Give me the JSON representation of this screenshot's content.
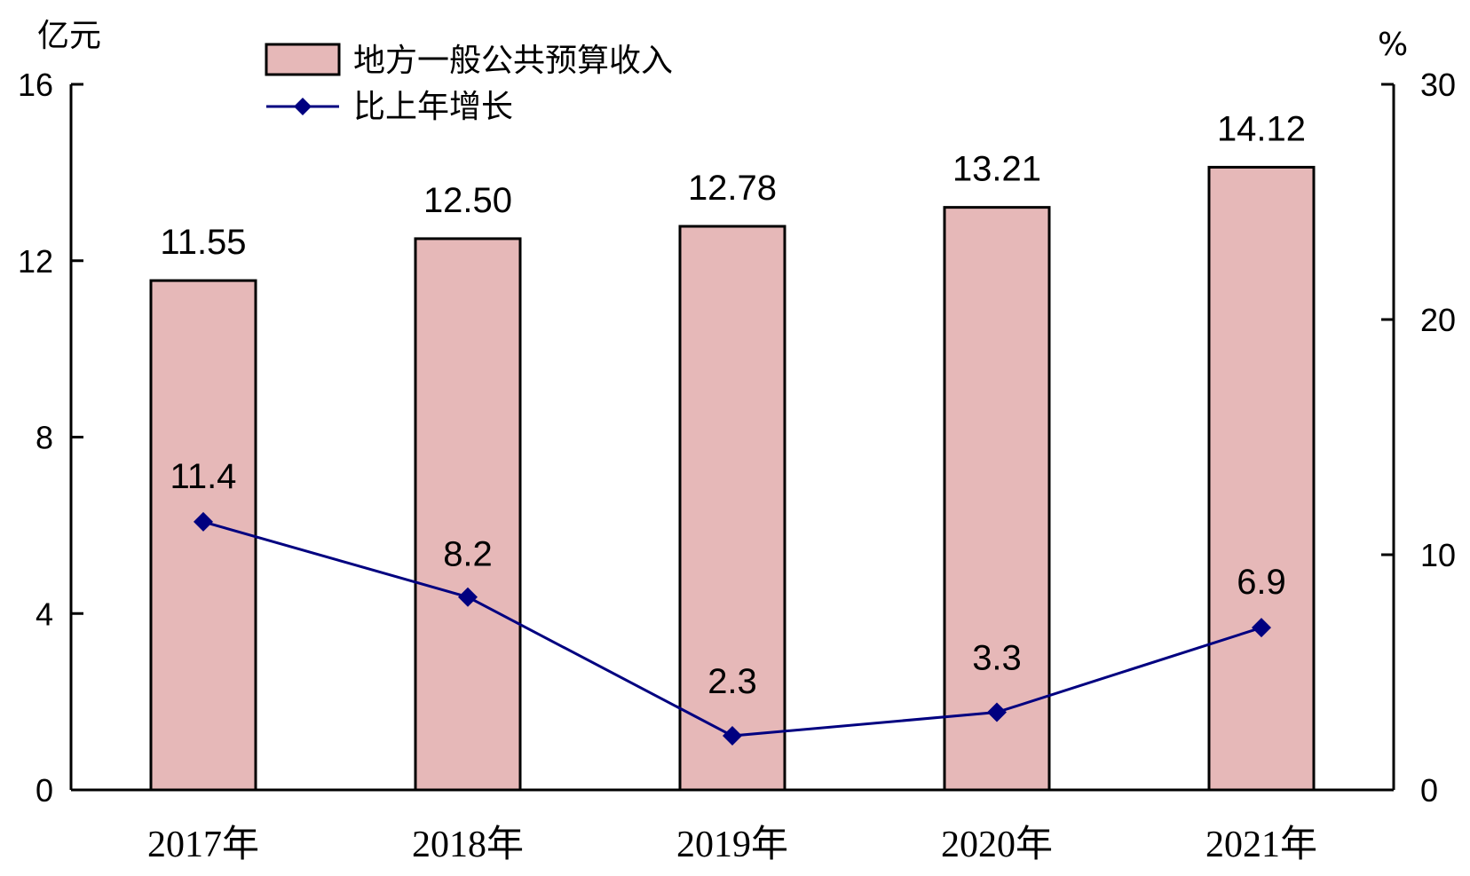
{
  "chart_data": {
    "type": "bar",
    "categories": [
      "2017年",
      "2018年",
      "2019年",
      "2020年",
      "2021年"
    ],
    "series": [
      {
        "name": "地方一般公共预算收入",
        "type": "bar",
        "axis": "left",
        "values": [
          11.55,
          12.5,
          12.78,
          13.21,
          14.12
        ],
        "labels": [
          "11.55",
          "12.50",
          "12.78",
          "13.21",
          "14.12"
        ],
        "color": "#e6b8b8"
      },
      {
        "name": "比上年增长",
        "type": "line",
        "axis": "right",
        "values": [
          11.4,
          8.2,
          2.3,
          3.3,
          6.9
        ],
        "labels": [
          "11.4",
          "8.2",
          "2.3",
          "3.3",
          "6.9"
        ],
        "color": "#000080"
      }
    ],
    "y_left": {
      "unit": "亿元",
      "ylim": [
        0,
        16
      ],
      "ticks": [
        "0",
        "4",
        "8",
        "12",
        "16"
      ]
    },
    "y_right": {
      "unit": "%",
      "ylim": [
        0,
        30
      ],
      "ticks": [
        "0",
        "10",
        "20",
        "30"
      ]
    },
    "grid": false,
    "legend": "top-left"
  }
}
